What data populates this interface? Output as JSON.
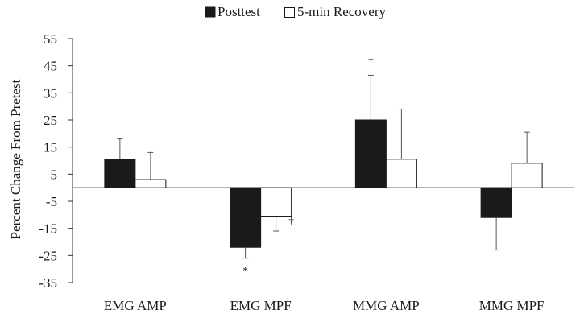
{
  "chart_data": {
    "type": "bar",
    "ylabel": "Percent Change From Pretest",
    "ylim": [
      -35,
      55
    ],
    "yticks": [
      55,
      45,
      35,
      25,
      15,
      5,
      -5,
      -15,
      -25,
      -35
    ],
    "categories": [
      "EMG AMP",
      "EMG MPF",
      "MMG AMP",
      "MMG MPF"
    ],
    "legend_position": "top-center",
    "grid": false,
    "series": [
      {
        "name": "Posttest",
        "color": "#1a1a1a",
        "values": [
          10.5,
          -22,
          25,
          -11
        ],
        "error": [
          7.5,
          4,
          16.5,
          12
        ],
        "error_direction": "outward"
      },
      {
        "name": "5-min Recovery",
        "color": "#ffffff",
        "values": [
          3,
          -10.5,
          10.5,
          9
        ],
        "error": [
          10,
          5.5,
          18.5,
          11.5
        ],
        "error_direction": "outward"
      }
    ],
    "annotations": [
      {
        "category": "EMG MPF",
        "series": "Posttest",
        "text": "*"
      },
      {
        "category": "EMG MPF",
        "series": "5-min Recovery",
        "text": "†"
      },
      {
        "category": "MMG AMP",
        "series": "Posttest",
        "text": "†"
      }
    ]
  }
}
